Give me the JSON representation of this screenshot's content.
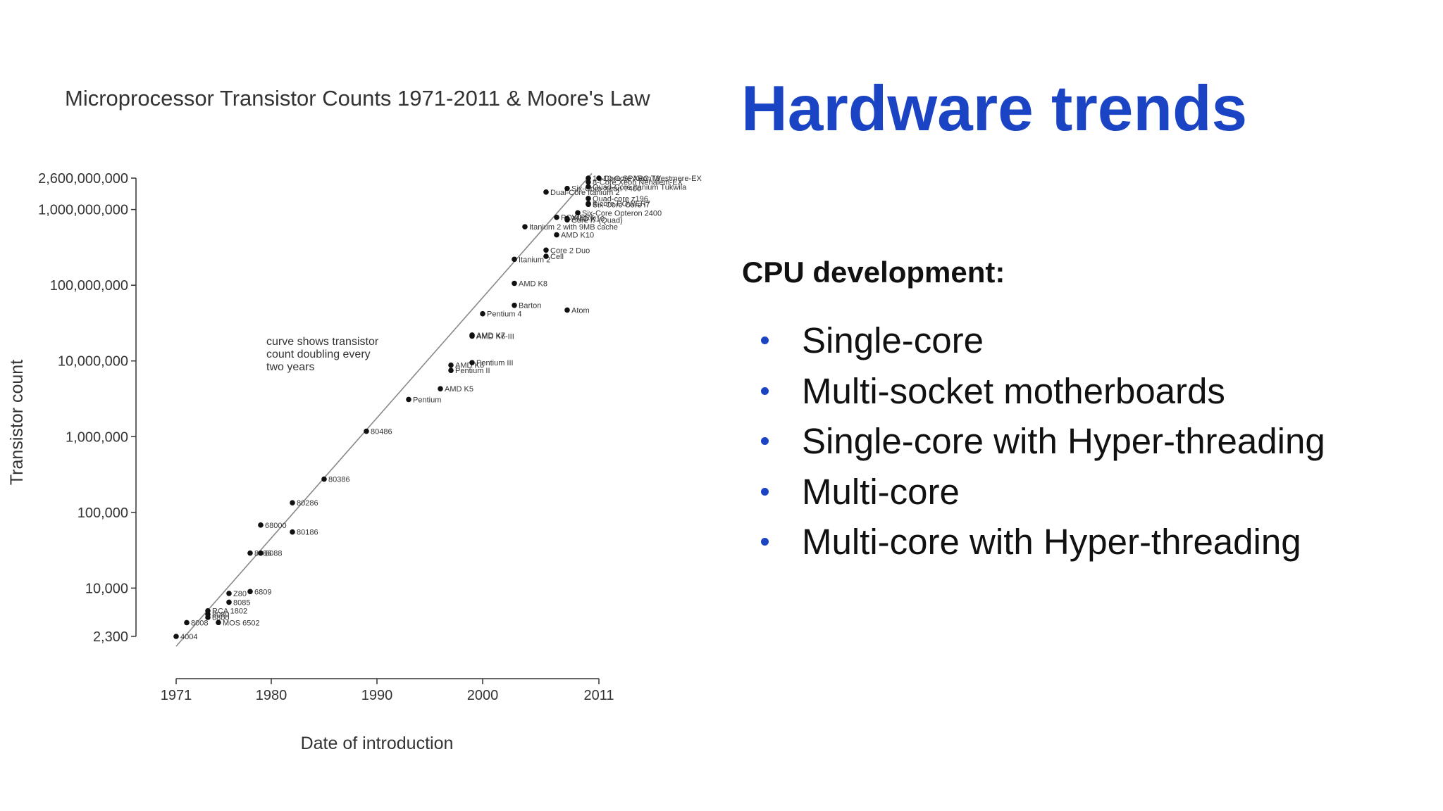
{
  "slide": {
    "title": "Hardware trends",
    "section_heading": "CPU development:",
    "bullets": [
      "Single-core",
      "Multi-socket motherboards",
      "Single-core with Hyper-threading",
      "Multi-core",
      "Multi-core with Hyper-threading"
    ],
    "accent_color": "#1a44c4",
    "bullet_icon": "bullet-dot-icon"
  },
  "chart_data": {
    "type": "scatter",
    "title": "Microprocessor Transistor Counts 1971-2011 & Moore's Law",
    "xlabel": "Date of introduction",
    "ylabel": "Transistor count",
    "y_scale": "log",
    "xlim": [
      1971,
      2011
    ],
    "ylim": [
      2300,
      2600000000
    ],
    "x_ticks": [
      1971,
      1980,
      1990,
      2000,
      2011
    ],
    "y_ticks": [
      {
        "value": 2300,
        "label": "2,300"
      },
      {
        "value": 10000,
        "label": "10,000"
      },
      {
        "value": 100000,
        "label": "100,000"
      },
      {
        "value": 1000000,
        "label": "1,000,000"
      },
      {
        "value": 10000000,
        "label": "10,000,000"
      },
      {
        "value": 100000000,
        "label": "100,000,000"
      },
      {
        "value": 1000000000,
        "label": "1,000,000,000"
      },
      {
        "value": 2600000000,
        "label": "2,600,000,000"
      }
    ],
    "trend_line": {
      "from": [
        1971,
        2300
      ],
      "to": [
        2011,
        3000000000
      ]
    },
    "annotation": [
      "curve shows transistor",
      "count doubling every",
      "two years"
    ],
    "points": [
      {
        "name": "4004",
        "x": 1971,
        "y": 2300
      },
      {
        "name": "8008",
        "x": 1972,
        "y": 3500
      },
      {
        "name": "8080",
        "x": 1974,
        "y": 4500
      },
      {
        "name": "RCA 1802",
        "x": 1974,
        "y": 5000
      },
      {
        "name": "MOS 6502",
        "x": 1975,
        "y": 3510
      },
      {
        "name": "8085",
        "x": 1976,
        "y": 6500
      },
      {
        "name": "6800",
        "x": 1974,
        "y": 4100
      },
      {
        "name": "Z80",
        "x": 1976,
        "y": 8500
      },
      {
        "name": "6809",
        "x": 1978,
        "y": 9000
      },
      {
        "name": "8086",
        "x": 1978,
        "y": 29000
      },
      {
        "name": "8088",
        "x": 1979,
        "y": 29000
      },
      {
        "name": "68000",
        "x": 1979,
        "y": 68000
      },
      {
        "name": "80186",
        "x": 1982,
        "y": 55000
      },
      {
        "name": "80286",
        "x": 1982,
        "y": 134000
      },
      {
        "name": "80386",
        "x": 1985,
        "y": 275000
      },
      {
        "name": "80486",
        "x": 1989,
        "y": 1180000
      },
      {
        "name": "Pentium",
        "x": 1993,
        "y": 3100000
      },
      {
        "name": "AMD K5",
        "x": 1996,
        "y": 4300000
      },
      {
        "name": "Pentium II",
        "x": 1997,
        "y": 7500000
      },
      {
        "name": "AMD K6",
        "x": 1997,
        "y": 8800000
      },
      {
        "name": "Pentium III",
        "x": 1999,
        "y": 9500000
      },
      {
        "name": "AMD K6-III",
        "x": 1999,
        "y": 21300000
      },
      {
        "name": "AMD K7",
        "x": 1999,
        "y": 22000000
      },
      {
        "name": "Pentium 4",
        "x": 2000,
        "y": 42000000
      },
      {
        "name": "Barton",
        "x": 2003,
        "y": 54300000
      },
      {
        "name": "AMD K8",
        "x": 2003,
        "y": 105900000
      },
      {
        "name": "Itanium 2",
        "x": 2003,
        "y": 220000000
      },
      {
        "name": "Atom",
        "x": 2008,
        "y": 47000000
      },
      {
        "name": "Core 2 Duo",
        "x": 2006,
        "y": 291000000
      },
      {
        "name": "Cell",
        "x": 2006,
        "y": 241000000
      },
      {
        "name": "AMD K10",
        "x": 2007,
        "y": 463000000
      },
      {
        "name": "Itanium 2 with 9MB cache",
        "x": 2004,
        "y": 592000000
      },
      {
        "name": "POWER6",
        "x": 2007,
        "y": 789000000
      },
      {
        "name": "AMD K10",
        "x": 2008,
        "y": 758000000
      },
      {
        "name": "Core i7 (Quad)",
        "x": 2008,
        "y": 731000000
      },
      {
        "name": "Six-Core Opteron 2400",
        "x": 2009,
        "y": 904000000
      },
      {
        "name": "Dual-Core Itanium 2",
        "x": 2006,
        "y": 1700000000
      },
      {
        "name": "Six-Core Xeon 7400",
        "x": 2008,
        "y": 1900000000
      },
      {
        "name": "Six-Core Core i7",
        "x": 2010,
        "y": 1170000000
      },
      {
        "name": "8-core POWER7",
        "x": 2010,
        "y": 1200000000
      },
      {
        "name": "Quad-core z196",
        "x": 2010,
        "y": 1400000000
      },
      {
        "name": "Quad-Core Itanium Tukwila",
        "x": 2010,
        "y": 2000000000
      },
      {
        "name": "8-Core Xeon Nehalem-EX",
        "x": 2010,
        "y": 2300000000
      },
      {
        "name": "16-Core SPARC T3",
        "x": 2010,
        "y": 2600000000
      },
      {
        "name": "10-Core Xeon Westmere-EX",
        "x": 2011,
        "y": 2600000000
      }
    ]
  }
}
